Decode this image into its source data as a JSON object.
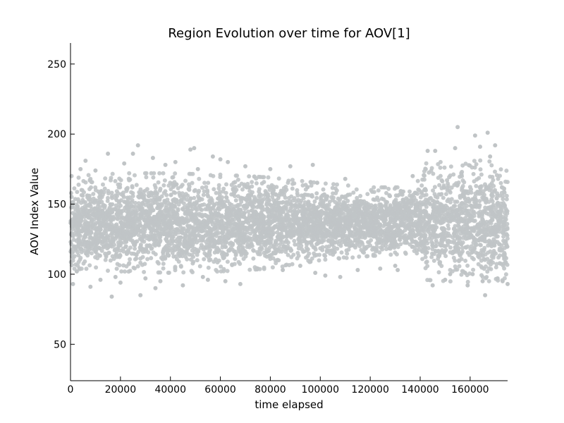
{
  "chart_data": {
    "type": "scatter",
    "title": "Region Evolution over time for AOV[1]",
    "xlabel": "time elapsed",
    "ylabel": "AOV Index Value",
    "xlim": [
      0,
      175000
    ],
    "ylim": [
      24,
      265
    ],
    "x_ticks": [
      {
        "value": 0,
        "label": "0"
      },
      {
        "value": 20000,
        "label": "20000"
      },
      {
        "value": 40000,
        "label": "40000"
      },
      {
        "value": 60000,
        "label": "60000"
      },
      {
        "value": 80000,
        "label": "80000"
      },
      {
        "value": 100000,
        "label": "100000"
      },
      {
        "value": 120000,
        "label": "120000"
      },
      {
        "value": 140000,
        "label": "140000"
      },
      {
        "value": 160000,
        "label": "160000"
      }
    ],
    "y_ticks": [
      {
        "value": 50,
        "label": "50"
      },
      {
        "value": 100,
        "label": "100"
      },
      {
        "value": 150,
        "label": "150"
      },
      {
        "value": 200,
        "label": "200"
      },
      {
        "value": 250,
        "label": "250"
      }
    ],
    "grid": false,
    "legend": "none",
    "point_color": "#c0c4c6",
    "series": [
      {
        "band_profile": [
          {
            "x": 0,
            "p1": 108,
            "p25": 126,
            "median": 136,
            "p75": 146,
            "p99": 166
          },
          {
            "x": 20000,
            "p1": 106,
            "p25": 126,
            "median": 136,
            "p75": 146,
            "p99": 168
          },
          {
            "x": 40000,
            "p1": 105,
            "p25": 126,
            "median": 136,
            "p75": 147,
            "p99": 168
          },
          {
            "x": 60000,
            "p1": 106,
            "p25": 126,
            "median": 136,
            "p75": 146,
            "p99": 167
          },
          {
            "x": 80000,
            "p1": 108,
            "p25": 127,
            "median": 136,
            "p75": 146,
            "p99": 165
          },
          {
            "x": 100000,
            "p1": 114,
            "p25": 129,
            "median": 137,
            "p75": 145,
            "p99": 161
          },
          {
            "x": 120000,
            "p1": 117,
            "p25": 130,
            "median": 137,
            "p75": 144,
            "p99": 158
          },
          {
            "x": 138000,
            "p1": 119,
            "p25": 131,
            "median": 138,
            "p75": 145,
            "p99": 158
          },
          {
            "x": 142000,
            "p1": 100,
            "p25": 125,
            "median": 137,
            "p75": 149,
            "p99": 175
          },
          {
            "x": 160000,
            "p1": 98,
            "p25": 124,
            "median": 137,
            "p75": 150,
            "p99": 178
          },
          {
            "x": 175000,
            "p1": 100,
            "p25": 125,
            "median": 137,
            "p75": 149,
            "p99": 175
          }
        ],
        "outliers": [
          [
            1000,
            93
          ],
          [
            2500,
            102
          ],
          [
            4000,
            175
          ],
          [
            6000,
            181
          ],
          [
            8000,
            91
          ],
          [
            10000,
            174
          ],
          [
            12000,
            96
          ],
          [
            15000,
            186
          ],
          [
            16500,
            84
          ],
          [
            18000,
            98
          ],
          [
            20000,
            94
          ],
          [
            21500,
            179
          ],
          [
            25000,
            186
          ],
          [
            27000,
            192
          ],
          [
            28000,
            85
          ],
          [
            30000,
            97
          ],
          [
            33000,
            183
          ],
          [
            34000,
            90
          ],
          [
            36000,
            95
          ],
          [
            38000,
            178
          ],
          [
            42000,
            180
          ],
          [
            45000,
            92
          ],
          [
            48000,
            189
          ],
          [
            49500,
            190
          ],
          [
            51000,
            175
          ],
          [
            53000,
            98
          ],
          [
            55000,
            96
          ],
          [
            57000,
            184
          ],
          [
            60000,
            182
          ],
          [
            62000,
            95
          ],
          [
            63000,
            180
          ],
          [
            68000,
            93
          ],
          [
            70000,
            177
          ],
          [
            75000,
            104
          ],
          [
            80000,
            175
          ],
          [
            85000,
            103
          ],
          [
            88000,
            177
          ],
          [
            92000,
            106
          ],
          [
            97000,
            178
          ],
          [
            98000,
            101
          ],
          [
            102000,
            99
          ],
          [
            108000,
            98
          ],
          [
            110000,
            168
          ],
          [
            115000,
            103
          ],
          [
            124000,
            104
          ],
          [
            130000,
            106
          ],
          [
            131000,
            103
          ],
          [
            137000,
            170
          ],
          [
            143000,
            188
          ],
          [
            145000,
            92
          ],
          [
            146000,
            188
          ],
          [
            150000,
            96
          ],
          [
            152000,
            100
          ],
          [
            154000,
            190
          ],
          [
            155000,
            205
          ],
          [
            158000,
            101
          ],
          [
            159000,
            92
          ],
          [
            161000,
            100
          ],
          [
            162000,
            199
          ],
          [
            164000,
            191
          ],
          [
            165000,
            95
          ],
          [
            166000,
            85
          ],
          [
            167000,
            201
          ],
          [
            168000,
            184
          ],
          [
            170000,
            192
          ],
          [
            171000,
            97
          ],
          [
            173000,
            95
          ],
          [
            175000,
            93
          ]
        ]
      }
    ]
  }
}
